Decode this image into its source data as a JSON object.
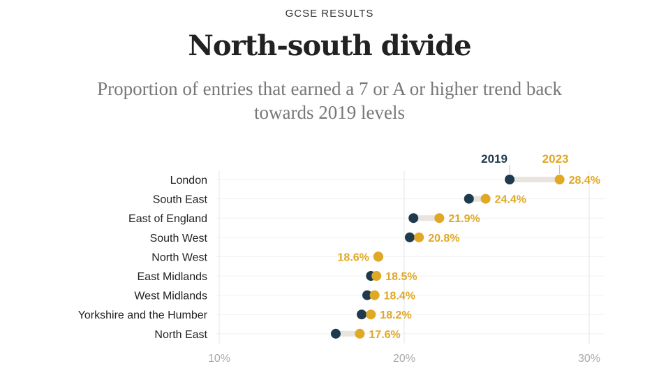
{
  "header": {
    "kicker": "GCSE RESULTS",
    "title": "North-south divide",
    "subtitle": "Proportion of entries that earned a 7 or A or higher trend back towards 2019 levels"
  },
  "chart_data": {
    "type": "dumbbell",
    "xlim": [
      10,
      30
    ],
    "x_ticks": [
      {
        "value": 10,
        "label": "10%"
      },
      {
        "value": 20,
        "label": "20%"
      },
      {
        "value": 30,
        "label": "30%"
      }
    ],
    "grid": true,
    "series": [
      {
        "name": "2019",
        "color": "#1f3a4d"
      },
      {
        "name": "2023",
        "color": "#e0a825"
      }
    ],
    "categories": [
      "London",
      "South East",
      "East of England",
      "South West",
      "North West",
      "East Midlands",
      "West Midlands",
      "Yorkshire and the Humber",
      "North East"
    ],
    "values_2019": [
      25.7,
      23.5,
      20.5,
      20.3,
      18.6,
      18.2,
      18.0,
      17.7,
      16.3
    ],
    "values_2023": [
      28.4,
      24.4,
      21.9,
      20.8,
      18.6,
      18.5,
      18.4,
      18.2,
      17.6
    ],
    "labels_2023": [
      "28.4%",
      "24.4%",
      "21.9%",
      "20.8%",
      "18.6%",
      "18.5%",
      "18.4%",
      "18.2%",
      "17.6%"
    ]
  }
}
